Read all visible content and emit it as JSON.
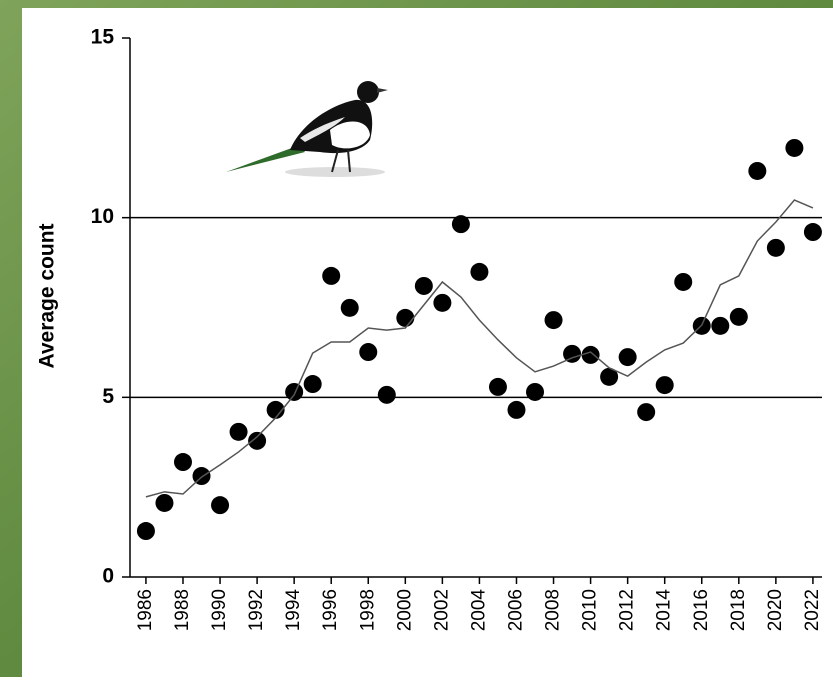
{
  "chart_data": {
    "type": "scatter",
    "y_label": "Average count",
    "x": [
      1986,
      1987,
      1988,
      1989,
      1990,
      1991,
      1992,
      1993,
      1994,
      1995,
      1996,
      1997,
      1998,
      1999,
      2000,
      2001,
      2002,
      2003,
      2004,
      2005,
      2006,
      2007,
      2008,
      2009,
      2010,
      2011,
      2012,
      2013,
      2014,
      2015,
      2016,
      2017,
      2018,
      2019,
      2020,
      2021,
      2022
    ],
    "series": [
      {
        "type": "scatter",
        "color": "#000000",
        "values": [
          1.28,
          2.06,
          3.2,
          2.81,
          2.0,
          4.04,
          3.79,
          4.65,
          5.15,
          5.37,
          8.38,
          7.49,
          6.26,
          5.07,
          7.21,
          8.1,
          7.63,
          9.82,
          8.49,
          5.29,
          4.65,
          5.15,
          7.15,
          6.21,
          6.18,
          5.57,
          6.12,
          4.59,
          5.34,
          8.21,
          6.99,
          6.99,
          7.24,
          11.3,
          9.16,
          11.94,
          9.6
        ]
      },
      {
        "type": "line",
        "color": "#555555",
        "values": [
          2.23,
          2.37,
          2.31,
          2.78,
          3.12,
          3.48,
          3.9,
          4.43,
          5.07,
          6.23,
          6.54,
          6.54,
          6.93,
          6.87,
          6.93,
          7.57,
          8.21,
          7.79,
          7.15,
          6.6,
          6.1,
          5.71,
          5.87,
          6.1,
          6.26,
          5.82,
          5.59,
          5.98,
          6.32,
          6.51,
          7.01,
          8.13,
          8.38,
          9.35,
          9.88,
          10.49,
          10.27
        ]
      }
    ],
    "xlim": [
      1985.14,
      2022.49
    ],
    "xticks": [
      1986,
      1988,
      1990,
      1992,
      1994,
      1996,
      1998,
      2000,
      2002,
      2004,
      2006,
      2008,
      2010,
      2012,
      2014,
      2016,
      2018,
      2020,
      2022
    ],
    "ylim": [
      0,
      15
    ],
    "yticks": [
      0,
      5,
      10,
      15
    ],
    "grid": true
  }
}
